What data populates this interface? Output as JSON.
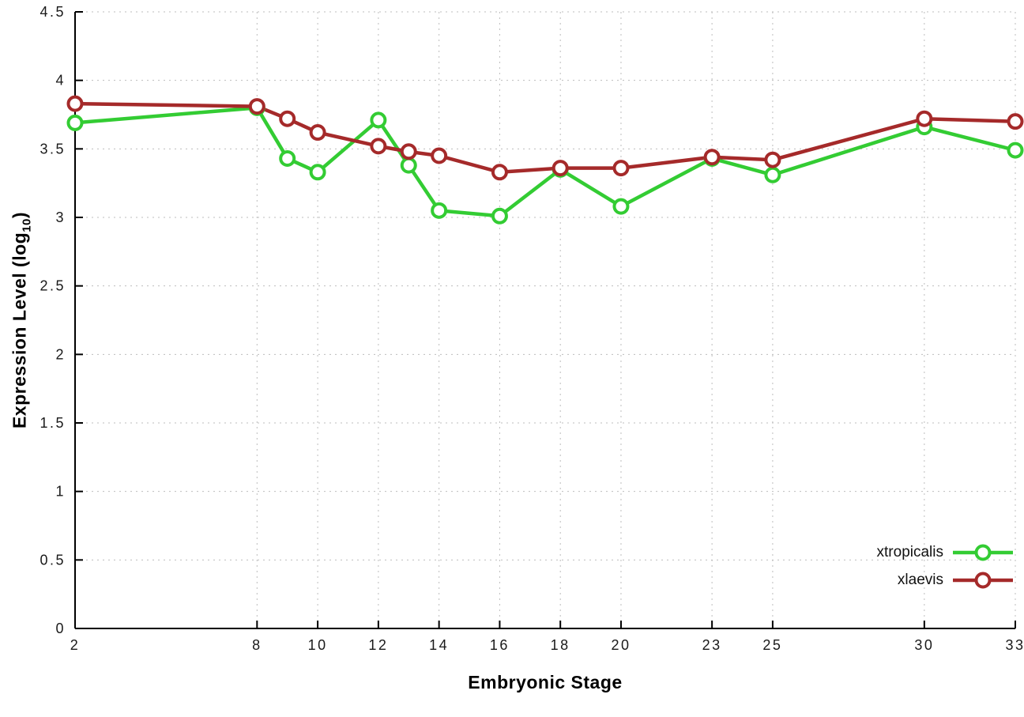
{
  "chart_data": {
    "type": "line",
    "title": "",
    "xlabel": "Embryonic Stage",
    "ylabel": "Expression Level (log10)",
    "ylabel_prefix": "Expression Level (log",
    "ylabel_sub": "10",
    "ylabel_suffix": ")",
    "x": [
      2,
      8,
      9,
      10,
      12,
      13,
      14,
      16,
      18,
      20,
      23,
      25,
      30,
      33
    ],
    "xticks": [
      2,
      8,
      10,
      12,
      14,
      16,
      18,
      20,
      23,
      25,
      30,
      33
    ],
    "xtick_labels": [
      "2",
      "8",
      "10",
      "12",
      "14",
      "16",
      "18",
      "20",
      "23",
      "25",
      "30",
      "33"
    ],
    "yticks": [
      0,
      0.5,
      1,
      1.5,
      2,
      2.5,
      3,
      3.5,
      4,
      4.5
    ],
    "ytick_labels": [
      "0",
      "0.5",
      "1",
      "1.5",
      "2",
      "2.5",
      "3",
      "3.5",
      "4",
      "4.5"
    ],
    "xlim": [
      2,
      33
    ],
    "ylim": [
      0,
      4.5
    ],
    "grid": true,
    "legend_position": "bottom-right",
    "series": [
      {
        "name": "xtropicalis",
        "color": "#33cc33",
        "values": [
          3.69,
          3.8,
          3.43,
          3.33,
          3.71,
          3.38,
          3.05,
          3.01,
          3.35,
          3.08,
          3.43,
          3.31,
          3.66,
          3.49
        ]
      },
      {
        "name": "xlaevis",
        "color": "#a52a2a",
        "values": [
          3.83,
          3.81,
          3.72,
          3.62,
          3.52,
          3.48,
          3.45,
          3.33,
          3.36,
          3.36,
          3.44,
          3.42,
          3.72,
          3.7
        ]
      }
    ]
  }
}
